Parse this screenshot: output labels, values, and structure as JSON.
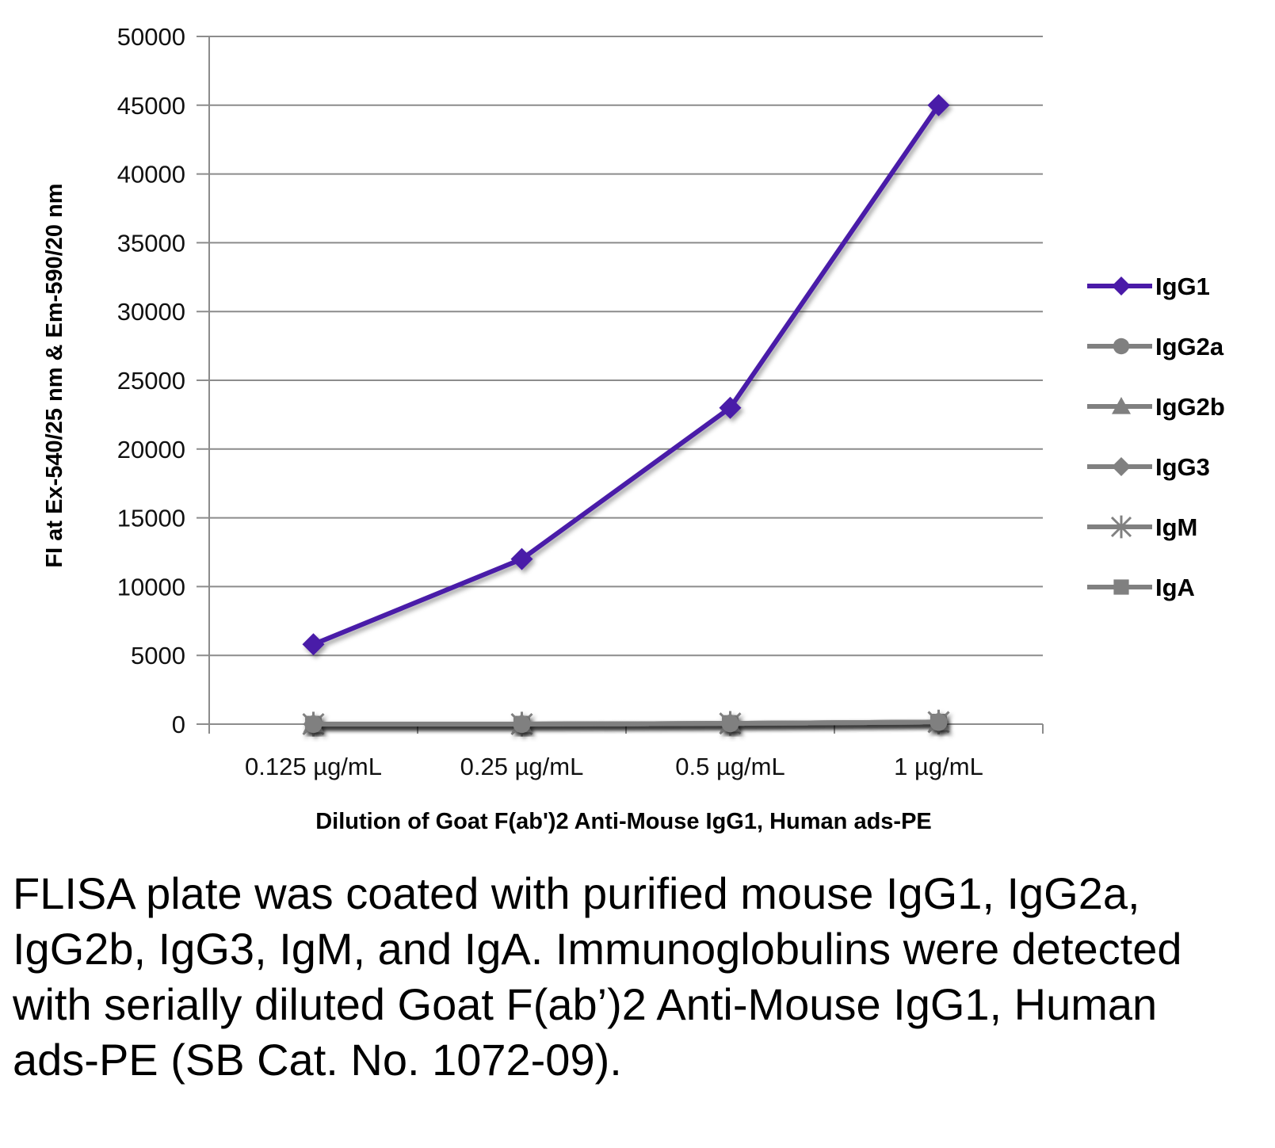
{
  "chart_data": {
    "type": "line",
    "categories": [
      "0.125 µg/mL",
      "0.25 µg/mL",
      "0.5 µg/mL",
      "1 µg/mL"
    ],
    "series": [
      {
        "name": "IgG1",
        "values": [
          5800,
          12000,
          23000,
          45000
        ],
        "color": "#4a1aa8",
        "marker": "diamond"
      },
      {
        "name": "IgG2a",
        "values": [
          0,
          0,
          50,
          150
        ],
        "color": "#808080",
        "marker": "circle"
      },
      {
        "name": "IgG2b",
        "values": [
          0,
          0,
          50,
          150
        ],
        "color": "#808080",
        "marker": "triangle"
      },
      {
        "name": "IgG3",
        "values": [
          0,
          0,
          50,
          150
        ],
        "color": "#808080",
        "marker": "diamond"
      },
      {
        "name": "IgM",
        "values": [
          0,
          0,
          50,
          150
        ],
        "color": "#808080",
        "marker": "star"
      },
      {
        "name": "IgA",
        "values": [
          0,
          0,
          50,
          150
        ],
        "color": "#808080",
        "marker": "square"
      }
    ],
    "xlabel": "Dilution of Goat F(ab')2 Anti-Mouse IgG1, Human ads-PE",
    "ylabel": "FI at Ex-540/25 nm & Em-590/20 nm",
    "ylim": [
      0,
      50000
    ],
    "yticks": [
      0,
      5000,
      10000,
      15000,
      20000,
      25000,
      30000,
      35000,
      40000,
      45000,
      50000
    ],
    "grid": true,
    "legend": "right"
  },
  "caption": "FLISA plate was coated with purified mouse IgG1, IgG2a, IgG2b, IgG3, IgM, and IgA. Immunoglobulins were detected with serially diluted Goat F(ab’)2 Anti-Mouse IgG1, Human ads-PE (SB Cat. No. 1072-09)."
}
